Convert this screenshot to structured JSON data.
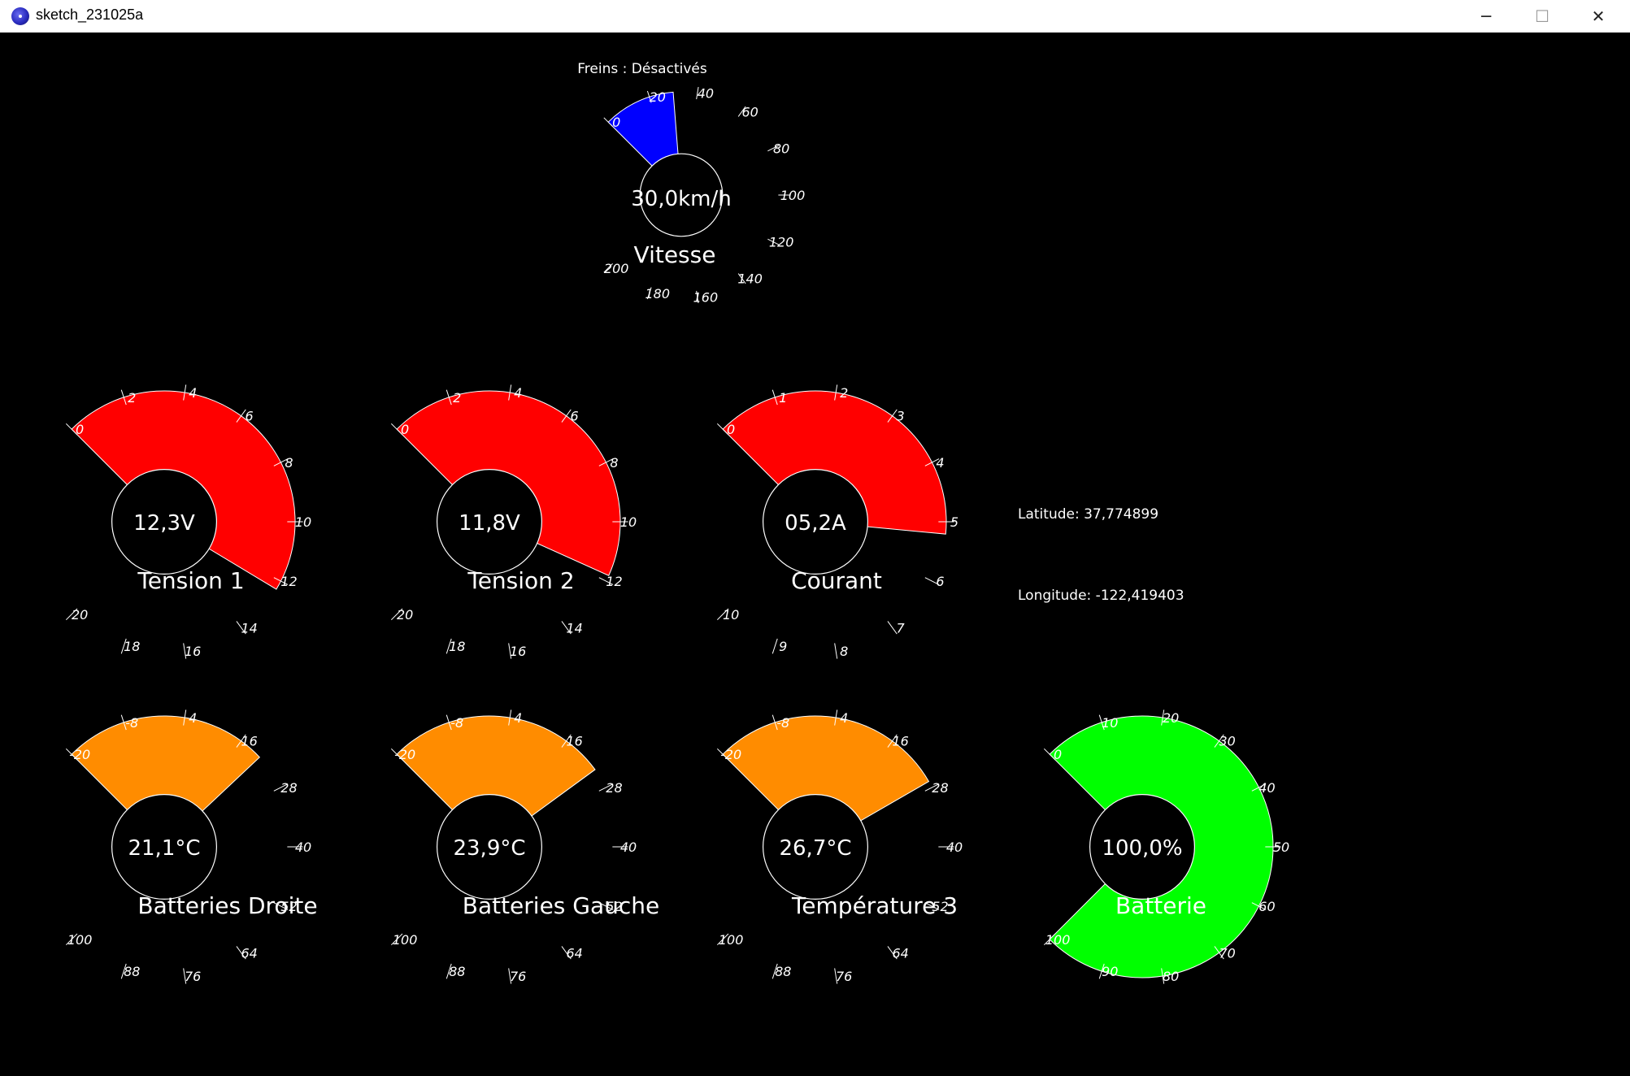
{
  "window": {
    "title": "sketch_231025a",
    "minimize_symbol": "─",
    "maximize_symbol": "☐",
    "close_symbol": "✕"
  },
  "brakes": {
    "text": "Freins : Désactivés"
  },
  "gps": {
    "latitude_text": "Latitude: 37,774899",
    "longitude_text": "Longitude: -122,419403"
  },
  "gauges": [
    {
      "id": "vitesse",
      "title": "Vitesse",
      "value_text": "30,0km/h",
      "fill_color": "#0000ff",
      "fill_fraction": 0.15,
      "ticks": [
        "0",
        "20",
        "40",
        "60",
        "80",
        "100",
        "120",
        "140",
        "160",
        "180",
        "200"
      ]
    },
    {
      "id": "tension-1",
      "title": "Tension 1",
      "value_text": "12,3V",
      "fill_color": "#ff0000",
      "fill_fraction": 0.615,
      "ticks": [
        "0",
        "2",
        "4",
        "6",
        "8",
        "10",
        "12",
        "14",
        "16",
        "18",
        "20"
      ]
    },
    {
      "id": "tension-2",
      "title": "Tension 2",
      "value_text": "11,8V",
      "fill_color": "#ff0000",
      "fill_fraction": 0.59,
      "ticks": [
        "0",
        "2",
        "4",
        "6",
        "8",
        "10",
        "12",
        "14",
        "16",
        "18",
        "20"
      ]
    },
    {
      "id": "courant",
      "title": "Courant",
      "value_text": "05,2A",
      "fill_color": "#ff0000",
      "fill_fraction": 0.52,
      "ticks": [
        "0",
        "1",
        "2",
        "3",
        "4",
        "5",
        "6",
        "7",
        "8",
        "9",
        "10"
      ]
    },
    {
      "id": "batteries-droite",
      "title": "Batteries Droite",
      "value_text": "21,1°C",
      "fill_color": "#ff8c00",
      "fill_fraction": 0.34,
      "ticks": [
        "-20",
        "-8",
        "4",
        "16",
        "28",
        "40",
        "52",
        "64",
        "76",
        "88",
        "100"
      ]
    },
    {
      "id": "batteries-gauche",
      "title": "Batteries Gauche",
      "value_text": "23,9°C",
      "fill_color": "#ff8c00",
      "fill_fraction": 0.366,
      "ticks": [
        "-20",
        "-8",
        "4",
        "16",
        "28",
        "40",
        "52",
        "64",
        "76",
        "88",
        "100"
      ]
    },
    {
      "id": "temperature-3",
      "title": "Température 3",
      "value_text": "26,7°C",
      "fill_color": "#ff8c00",
      "fill_fraction": 0.389,
      "ticks": [
        "-20",
        "-8",
        "4",
        "16",
        "28",
        "40",
        "52",
        "64",
        "76",
        "88",
        "100"
      ]
    },
    {
      "id": "batterie",
      "title": "Batterie",
      "value_text": "100,0%",
      "fill_color": "#00ff00",
      "fill_fraction": 1.0,
      "ticks": [
        "0",
        "10",
        "20",
        "30",
        "40",
        "50",
        "60",
        "70",
        "80",
        "90",
        "100"
      ]
    }
  ]
}
